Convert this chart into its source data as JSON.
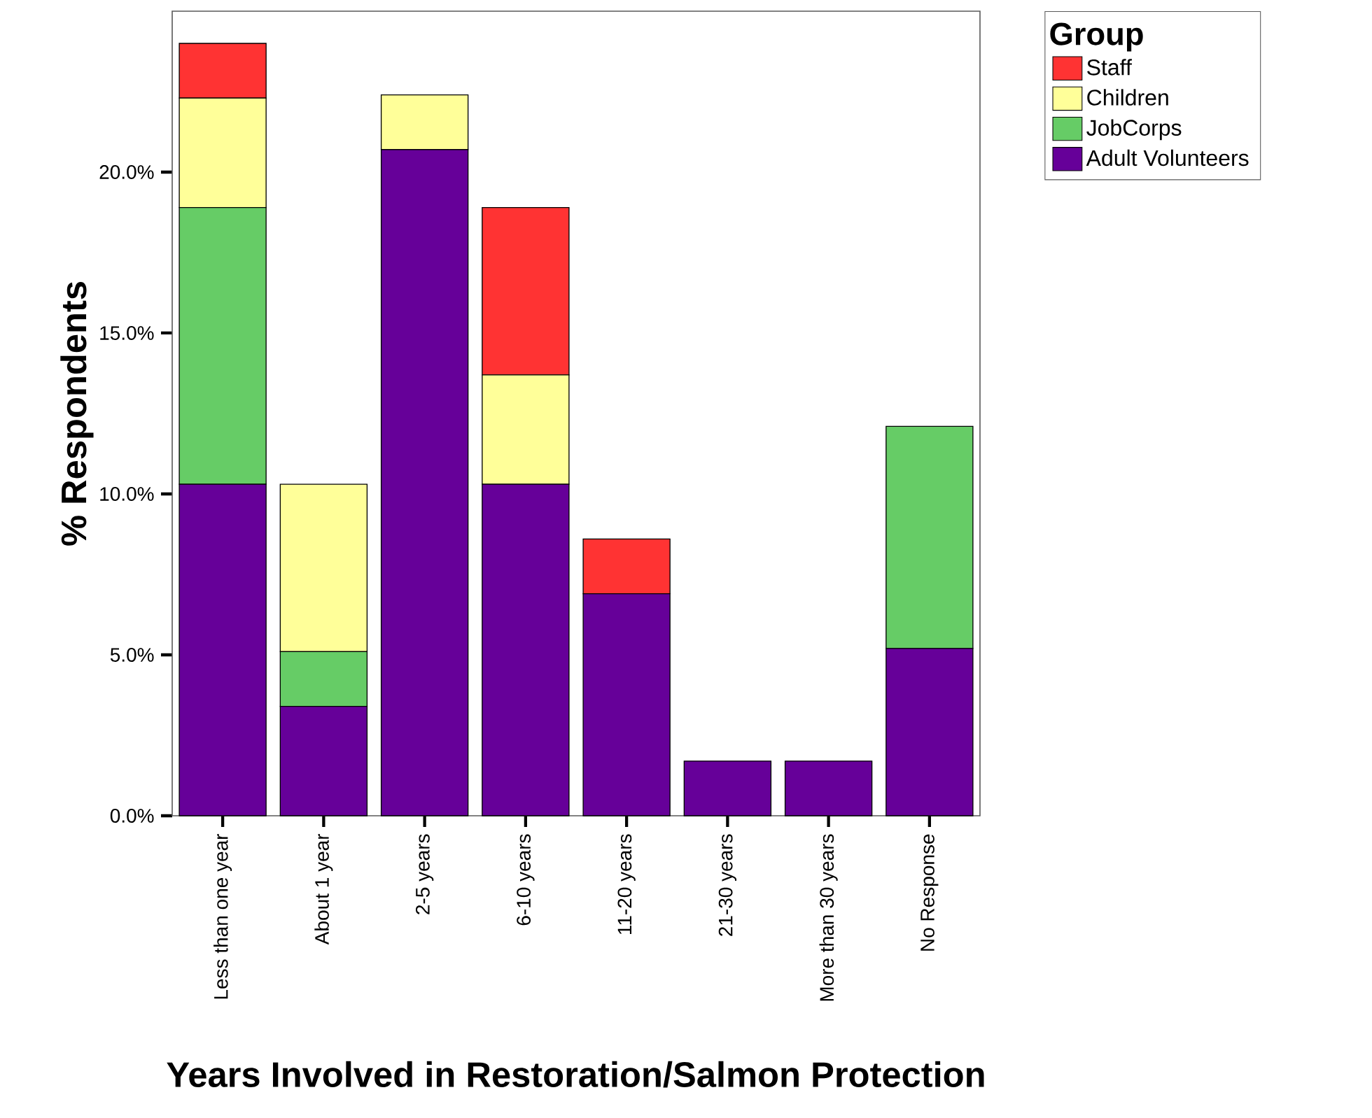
{
  "chart_data": {
    "type": "bar",
    "stacked": true,
    "xlabel": "Years Involved in Restoration/Salmon Protection",
    "ylabel": "% Respondents",
    "legend": "top right",
    "legend_title": "Group",
    "categories": [
      "Less than one year",
      "About 1 year",
      "2-5 years",
      "6-10 years",
      "11-20 years",
      "21-30 years",
      "More than 30 years",
      "No Response"
    ],
    "series": [
      {
        "name": "Adult Volunteers",
        "color": "#660099",
        "values": [
          10.3,
          3.4,
          20.7,
          10.3,
          6.9,
          1.7,
          1.7,
          5.2
        ]
      },
      {
        "name": "JobCorps",
        "color": "#66cc66",
        "values": [
          8.6,
          1.7,
          null,
          null,
          null,
          null,
          null,
          6.9
        ]
      },
      {
        "name": "Children",
        "color": "#ffff99",
        "values": [
          3.4,
          5.2,
          1.7,
          3.4,
          null,
          null,
          null,
          null
        ]
      },
      {
        "name": "Staff",
        "color": "#ff3333",
        "values": [
          1.7,
          null,
          null,
          5.2,
          1.7,
          null,
          null,
          null
        ]
      }
    ],
    "ylim": [
      0,
      25
    ],
    "yticks": [
      {
        "value": 0,
        "label": "0.0%"
      },
      {
        "value": 5,
        "label": "5.0%"
      },
      {
        "value": 10,
        "label": "10.0%"
      },
      {
        "value": 15,
        "label": "15.0%"
      },
      {
        "value": 20,
        "label": "20.0%"
      }
    ]
  }
}
